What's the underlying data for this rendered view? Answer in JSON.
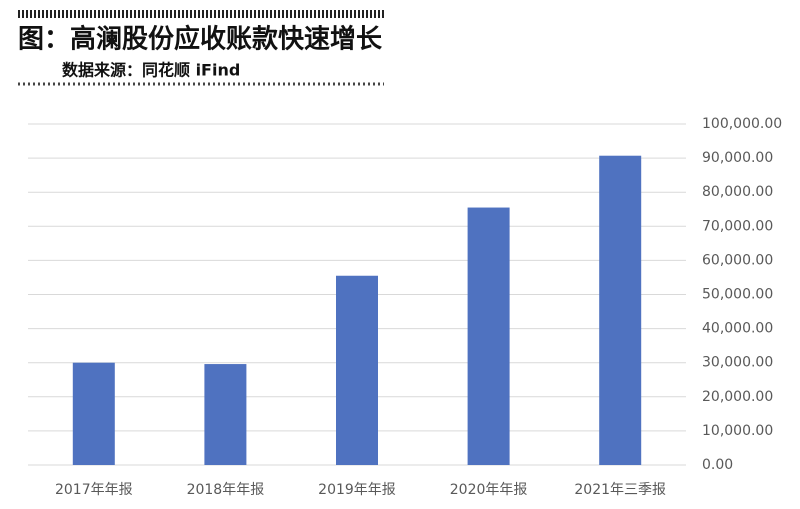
{
  "chart_data": {
    "type": "bar",
    "title": "图：高澜股份应收账款快速增长",
    "subtitle": "数据来源：同花顺 iFind",
    "categories": [
      "2017年年报",
      "2018年年报",
      "2019年年报",
      "2020年年报",
      "2021年三季报"
    ],
    "values": [
      30000,
      29600,
      55500,
      75500,
      90700
    ],
    "color": "#4f72c0",
    "ylim": [
      0,
      100000
    ],
    "yticks": [
      {
        "value": 0,
        "label": "0.00"
      },
      {
        "value": 10000,
        "label": "10,000.00"
      },
      {
        "value": 20000,
        "label": "20,000.00"
      },
      {
        "value": 30000,
        "label": "30,000.00"
      },
      {
        "value": 40000,
        "label": "40,000.00"
      },
      {
        "value": 50000,
        "label": "50,000.00"
      },
      {
        "value": 60000,
        "label": "60,000.00"
      },
      {
        "value": 70000,
        "label": "70,000.00"
      },
      {
        "value": 80000,
        "label": "80,000.00"
      },
      {
        "value": 90000,
        "label": "90,000.00"
      },
      {
        "value": 100000,
        "label": "100,000.00"
      }
    ],
    "grid": true
  }
}
